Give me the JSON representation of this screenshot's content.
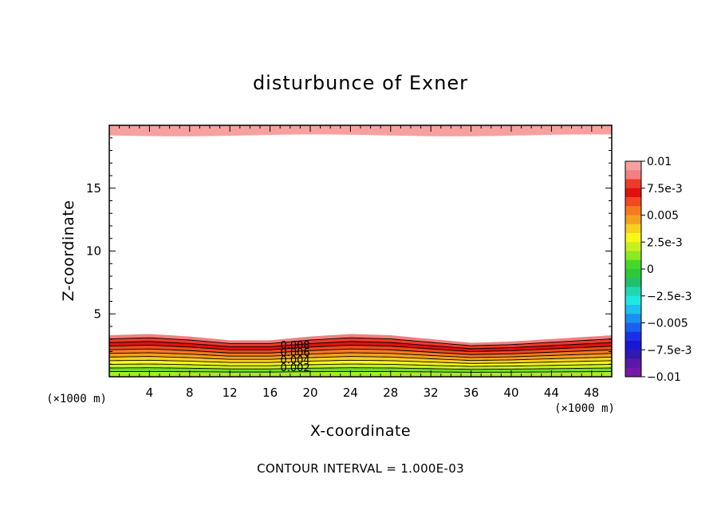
{
  "chart_data": {
    "type": "contour",
    "title": "disturbunce of Exner",
    "xlabel": "X-coordinate",
    "ylabel": "Z-coordinate",
    "x_unit": "(×1000 m)",
    "y_unit": "(×1000 m)",
    "x_ticks": [
      "4",
      "8",
      "12",
      "16",
      "20",
      "24",
      "28",
      "32",
      "36",
      "40",
      "44",
      "48"
    ],
    "y_ticks": [
      "5",
      "10",
      "15"
    ],
    "xlim": [
      0,
      50
    ],
    "ylim": [
      0,
      20
    ],
    "colorbar": {
      "labels": [
        "0.01",
        "7.5e-3",
        "0.005",
        "2.5e-3",
        "0",
        "−2.5e-3",
        "−0.005",
        "−7.5e-3",
        "−0.01"
      ],
      "colors": [
        "#f7a0a0",
        "#f28080",
        "#ee3a2a",
        "#e01010",
        "#f04a1e",
        "#f57a1e",
        "#f6a020",
        "#f8d020",
        "#f8f818",
        "#c8f020",
        "#8ee822",
        "#44d82a",
        "#2ec83a",
        "#20c070",
        "#20d8b0",
        "#20e8e0",
        "#20c0f0",
        "#1a90f0",
        "#1a60f0",
        "#1a30e8",
        "#1818d0",
        "#3018b0",
        "#5818a8",
        "#7818a8"
      ]
    },
    "contour_labels": [
      "0.008",
      "0.006",
      "0.004",
      "0.002"
    ],
    "band_colors_surface_to_top": [
      "#a8ec22",
      "#70e024",
      "#c8f020",
      "#f8f818",
      "#f8d020",
      "#f6a020",
      "#f57a1e",
      "#f04a1e",
      "#e01010",
      "#ee3a2a",
      "#f28080"
    ],
    "surface_layer_top_x": [
      0,
      4,
      8,
      12,
      16,
      20,
      24,
      28,
      32,
      36,
      40,
      44,
      48,
      50
    ],
    "surface_layer_top_z": [
      3.3,
      3.4,
      3.2,
      2.9,
      2.9,
      3.2,
      3.4,
      3.3,
      3.0,
      2.7,
      2.8,
      3.0,
      3.2,
      3.3
    ],
    "top_layer_bottom_z": 19.2,
    "top_layer_color": "#f7a0a0"
  },
  "footer": "CONTOUR INTERVAL = 1.000E-03"
}
